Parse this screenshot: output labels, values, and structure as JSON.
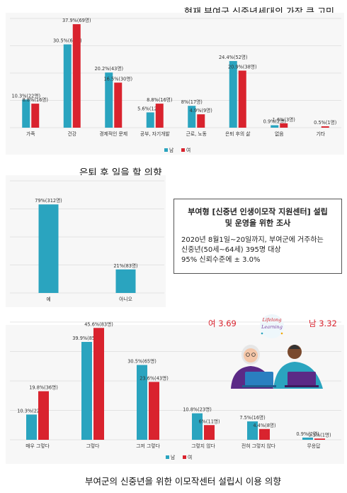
{
  "titles": {
    "concern": "현재 부여군 신중년세대의 가장 큰 고민",
    "retire": "은퇴 후 일을 할 의향",
    "center": "부여군의 신중년을 위한 이모작센터 설립시 이용 의향"
  },
  "survey": {
    "title": "부여형 [신중년 인생이모작 지원센터] 설립\n및 운영을 위한 조사",
    "line1": "2020년 8월1일~20일까지, 부여군에 거주하는",
    "line2": "신중년(50세~64세) 395명 대상",
    "line3": "95% 신뢰수준에 ± 3.0%"
  },
  "illustration": {
    "female_score": "여 3.69",
    "male_score": "남 3.32",
    "lettering": "Lifelong Learning"
  },
  "colors": {
    "male": "#2aa4bf",
    "female": "#d9232e"
  },
  "chart_data": [
    {
      "type": "bar",
      "categories": [
        "가족",
        "건강",
        "경제적인 문제",
        "공부, 자기개발",
        "근로, 노동",
        "은퇴 후의 삶",
        "없음",
        "기타"
      ],
      "series": [
        {
          "name": "남",
          "values": [
            10.3,
            30.5,
            20.2,
            5.6,
            8,
            24.4,
            0.9,
            0
          ],
          "labels": [
            "10.3%(22명)",
            "30.5%(65명)",
            "20.2%(43명)",
            "5.6%(12명)",
            "8%(17명)",
            "24.4%(52명)",
            "0.9%(2명)",
            ""
          ]
        },
        {
          "name": "여",
          "values": [
            8.8,
            37.9,
            16.5,
            8.8,
            4.9,
            20.9,
            1.6,
            0.5
          ],
          "labels": [
            "8.8%(16명)",
            "37.9%(69명)",
            "16.5%(30명)",
            "8.8%(16명)",
            "4.9%(9명)",
            "20.9%(38명)",
            "1.6%(3명)",
            "0.5%(1명)"
          ]
        }
      ],
      "ylim": [
        0,
        40
      ],
      "legend": [
        "남",
        "여"
      ],
      "legend_position": "bottom-center",
      "grid": true
    },
    {
      "type": "bar",
      "categories": [
        "예",
        "아니오"
      ],
      "series": [
        {
          "values": [
            79,
            21
          ],
          "labels": [
            "79%(312명)",
            "21%(83명)"
          ]
        }
      ],
      "ylim": [
        0,
        100
      ],
      "grid": true
    },
    {
      "type": "bar",
      "categories": [
        "매우 그렇다",
        "그렇다",
        "그저 그렇다",
        "그렇지 않다",
        "전혀 그렇지 않다",
        "무응답"
      ],
      "series": [
        {
          "name": "남",
          "values": [
            10.3,
            39.9,
            30.5,
            10.8,
            7.5,
            0.9
          ],
          "labels": [
            "10.3%(22명)",
            "39.9%(85명)",
            "30.5%(65명)",
            "10.8%(23명)",
            "7.5%(16명)",
            "0.9%(2명)"
          ]
        },
        {
          "name": "여",
          "values": [
            19.8,
            45.6,
            23.6,
            6,
            4.4,
            0.5
          ],
          "labels": [
            "19.8%(36명)",
            "45.6%(83명)",
            "23.6%(43명)",
            "6%(11명)",
            "4.4%(8명)",
            "0.5%(1명)"
          ]
        }
      ],
      "ylim": [
        0,
        48
      ],
      "legend": [
        "남",
        "여"
      ],
      "legend_position": "bottom-center",
      "grid": true
    }
  ]
}
